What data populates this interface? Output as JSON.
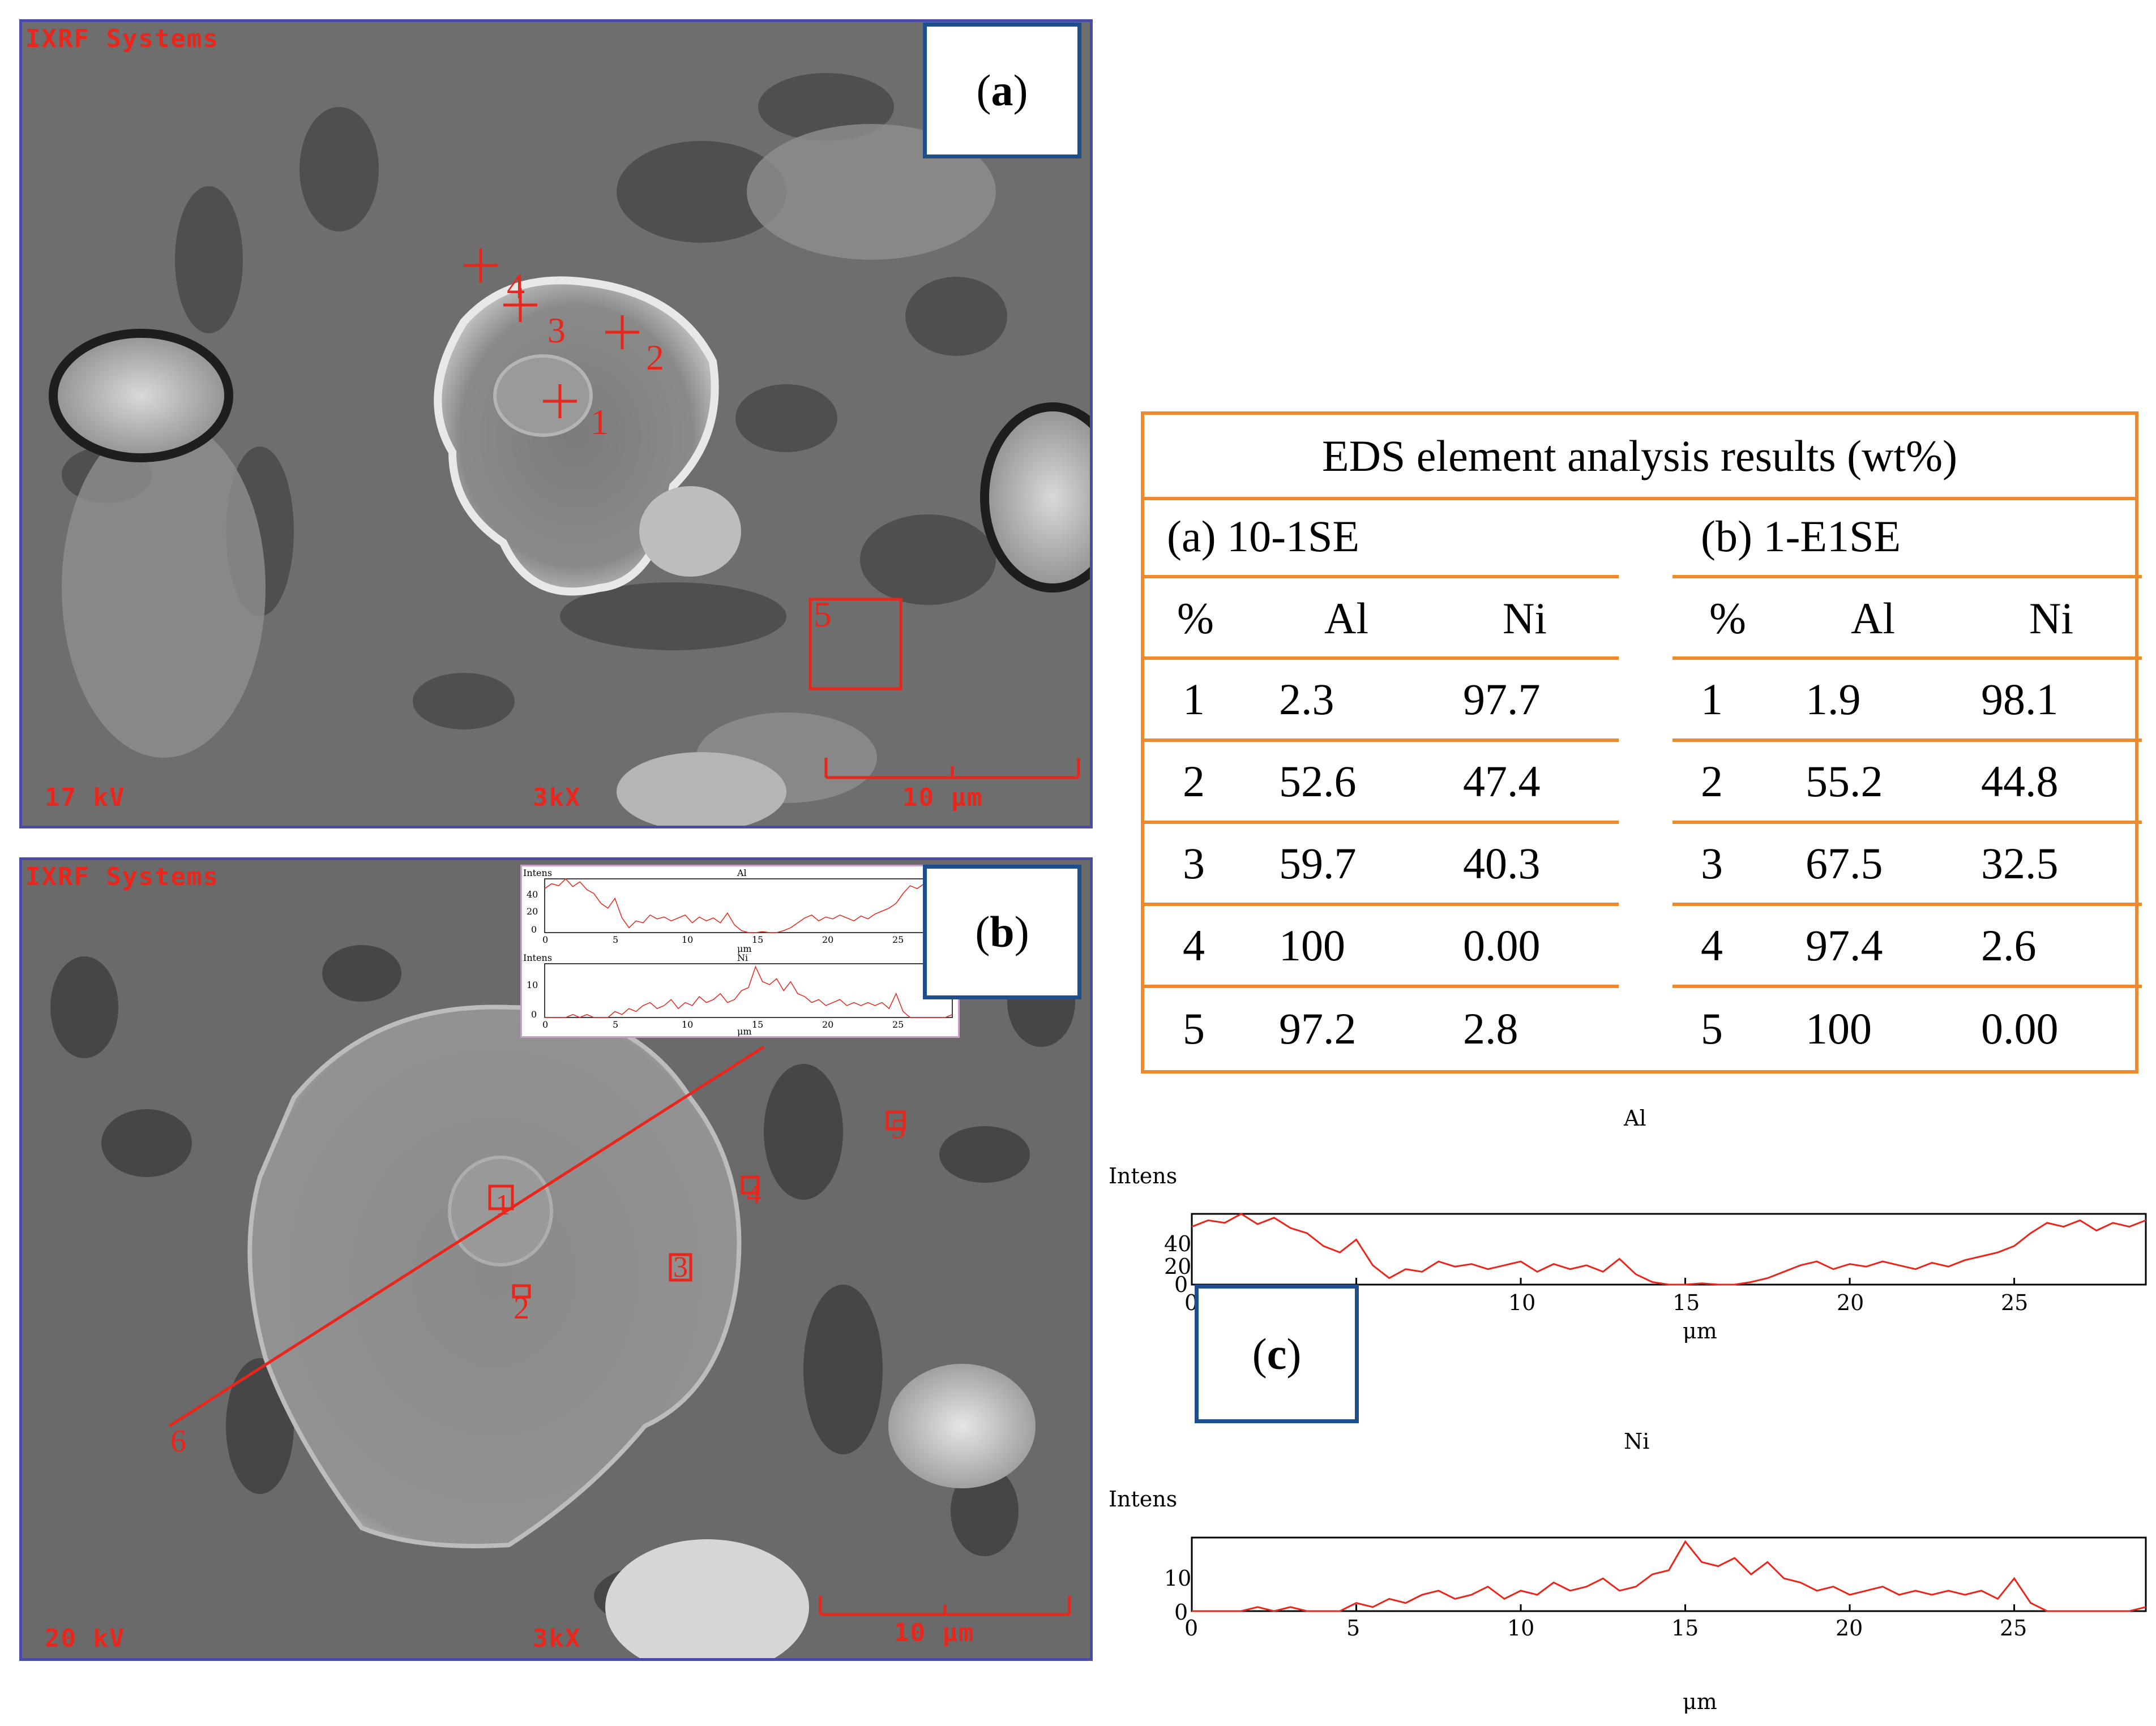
{
  "panel_a": {
    "label": "a",
    "overlay_top": "IXRF Systems",
    "kv": "17 kV",
    "mag": "3kX",
    "scale": "10 μm",
    "markers": [
      "1",
      "2",
      "3",
      "4",
      "5"
    ]
  },
  "panel_b": {
    "label": "b",
    "overlay_top": "IXRF Systems",
    "kv": "20 kV",
    "mag": "3kX",
    "scale": "10 μm",
    "markers": [
      "1",
      "2",
      "3",
      "4",
      "5",
      "6"
    ],
    "inset": {
      "y_label": "Intens",
      "x_label": "μm",
      "al_title": "Al",
      "ni_title": "Ni",
      "al_yticks": [
        "40",
        "20",
        "0"
      ],
      "ni_yticks": [
        "10",
        "0"
      ],
      "xticks": [
        "0",
        "5",
        "10",
        "15",
        "20",
        "25"
      ]
    }
  },
  "table": {
    "title": "EDS element analysis results (wt%)",
    "left_caption": "(a) 10-1SE",
    "right_caption": "(b) 1-E1SE",
    "headers": [
      "%",
      "Al",
      "Ni"
    ],
    "left_rows": [
      [
        "1",
        "2.3",
        "97.7"
      ],
      [
        "2",
        "52.6",
        "47.4"
      ],
      [
        "3",
        "59.7",
        "40.3"
      ],
      [
        "4",
        "100",
        "0.00"
      ],
      [
        "5",
        "97.2",
        "2.8"
      ]
    ],
    "right_rows": [
      [
        "1",
        "1.9",
        "98.1"
      ],
      [
        "2",
        "55.2",
        "44.8"
      ],
      [
        "3",
        "67.5",
        "32.5"
      ],
      [
        "4",
        "97.4",
        "2.6"
      ],
      [
        "5",
        "100",
        "0.00"
      ]
    ]
  },
  "panel_c": {
    "label": "c",
    "al_plot": {
      "title": "Al",
      "y_label": "Intens",
      "x_label": "μm",
      "yticks": [
        "40",
        "20",
        "0"
      ],
      "xticks": [
        "0",
        "5",
        "10",
        "15",
        "20",
        "25"
      ],
      "ylim": [
        0,
        55
      ],
      "xlim": [
        0,
        29
      ],
      "x": [
        0,
        0.5,
        1,
        1.5,
        2,
        2.5,
        3,
        3.5,
        4,
        4.5,
        5,
        5.5,
        6,
        6.5,
        7,
        7.5,
        8,
        8.5,
        9,
        9.5,
        10,
        10.5,
        11,
        11.5,
        12,
        12.5,
        13,
        13.5,
        14,
        14.5,
        15,
        15.5,
        16,
        16.5,
        17,
        17.5,
        18,
        18.5,
        19,
        19.5,
        20,
        20.5,
        21,
        21.5,
        22,
        22.5,
        23,
        23.5,
        24,
        24.5,
        25,
        25.5,
        26,
        26.5,
        27,
        27.5,
        28,
        28.5,
        29
      ],
      "values": [
        45,
        50,
        48,
        55,
        47,
        52,
        44,
        40,
        30,
        25,
        35,
        15,
        5,
        12,
        10,
        18,
        14,
        16,
        12,
        15,
        18,
        10,
        16,
        12,
        15,
        10,
        20,
        8,
        2,
        0,
        0,
        1,
        0,
        0,
        2,
        5,
        10,
        15,
        18,
        12,
        16,
        14,
        18,
        15,
        12,
        17,
        14,
        19,
        22,
        25,
        30,
        40,
        48,
        45,
        50,
        42,
        48,
        45,
        50
      ]
    },
    "ni_plot": {
      "title": "Ni",
      "y_label": "Intens",
      "x_label": "μm",
      "yticks": [
        "10",
        "0"
      ],
      "xticks": [
        "0",
        "5",
        "10",
        "15",
        "20",
        "25"
      ],
      "ylim": [
        0,
        18
      ],
      "xlim": [
        0,
        29
      ],
      "x": [
        0,
        0.5,
        1,
        1.5,
        2,
        2.5,
        3,
        3.5,
        4,
        4.5,
        5,
        5.5,
        6,
        6.5,
        7,
        7.5,
        8,
        8.5,
        9,
        9.5,
        10,
        10.5,
        11,
        11.5,
        12,
        12.5,
        13,
        13.5,
        14,
        14.5,
        15,
        15.5,
        16,
        16.5,
        17,
        17.5,
        18,
        18.5,
        19,
        19.5,
        20,
        20.5,
        21,
        21.5,
        22,
        22.5,
        23,
        23.5,
        24,
        24.5,
        25,
        25.5,
        26,
        26.5,
        27,
        27.5,
        28,
        28.5,
        29
      ],
      "values": [
        0,
        0,
        0,
        0,
        1,
        0,
        1,
        0,
        0,
        0,
        2,
        1,
        3,
        2,
        4,
        5,
        3,
        4,
        6,
        3,
        5,
        4,
        7,
        5,
        6,
        8,
        5,
        6,
        9,
        10,
        17,
        12,
        11,
        13,
        9,
        12,
        8,
        7,
        5,
        6,
        4,
        5,
        6,
        4,
        5,
        4,
        5,
        4,
        5,
        3,
        8,
        2,
        0,
        0,
        0,
        0,
        0,
        0,
        1
      ]
    }
  }
}
